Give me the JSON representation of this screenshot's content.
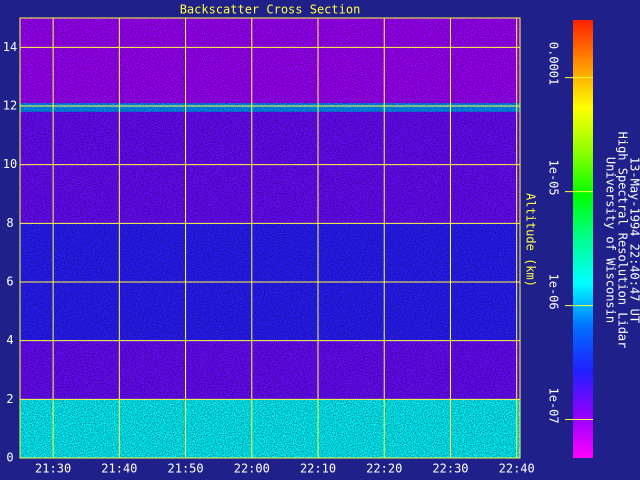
{
  "chart_data": {
    "type": "heatmap",
    "title": "Backscatter Cross Section",
    "y_label": "Altitude (km)",
    "notes": [
      "University of Wisconsin",
      "High Spectral Resolution Lidar",
      "13-May-1994 22:40:47 UT"
    ],
    "xlim": [
      1285,
      1360.5
    ],
    "xticks": [
      {
        "value": 1290,
        "label": "21:30"
      },
      {
        "value": 1300,
        "label": "21:40"
      },
      {
        "value": 1310,
        "label": "21:50"
      },
      {
        "value": 1320,
        "label": "22:00"
      },
      {
        "value": 1330,
        "label": "22:10"
      },
      {
        "value": 1340,
        "label": "22:20"
      },
      {
        "value": 1350,
        "label": "22:30"
      },
      {
        "value": 1360,
        "label": "22:40"
      }
    ],
    "ylim": [
      0,
      15
    ],
    "yticks": [
      0,
      2,
      4,
      6,
      8,
      10,
      12,
      14
    ],
    "grid": true,
    "ybins": [
      0,
      2,
      4,
      8,
      11.8,
      12.1,
      15
    ],
    "values": [
      1.5e-06,
      1.5e-07,
      2.5e-07,
      1.5e-07,
      8e-07,
      1e-07
    ],
    "log_color": true,
    "clim": [
      4.6e-08,
      0.00032
    ],
    "cticks": [
      {
        "value": 0.0001,
        "label": "0.0001"
      },
      {
        "value": 1e-05,
        "label": "1e-05"
      },
      {
        "value": 1e-06,
        "label": "1e-06"
      },
      {
        "value": 1e-07,
        "label": "1e-07"
      }
    ],
    "colormap": [
      "#ff00ff",
      "#9000ff",
      "#2020ff",
      "#0070ff",
      "#00ffff",
      "#00ff90",
      "#00ff00",
      "#90ff00",
      "#ffff00",
      "#ff9000",
      "#ff2000"
    ]
  }
}
